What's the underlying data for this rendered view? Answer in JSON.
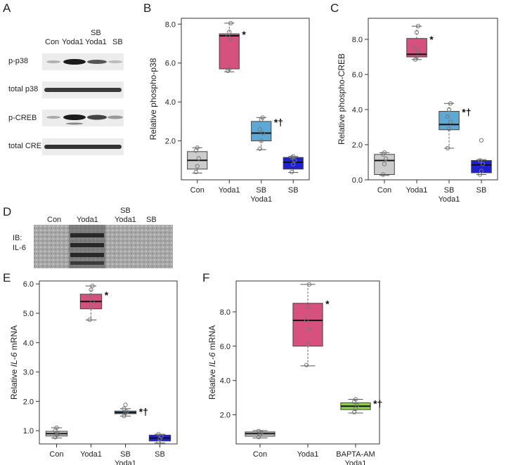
{
  "panel_letters": {
    "a": "A",
    "b": "B",
    "c": "C",
    "d": "D",
    "e": "E",
    "f": "F"
  },
  "blot_a": {
    "lanes": [
      "Con",
      "Yoda1",
      "SB\nYoda1",
      "SB"
    ],
    "rows": [
      "p-p38",
      "total p38",
      "p-CREB",
      "total CREB"
    ]
  },
  "blot_d": {
    "lanes": [
      "Con",
      "Yoda1",
      "SB\nYoda1",
      "SB"
    ],
    "side_label": [
      "IB:",
      "IL-6"
    ]
  },
  "chart_data": [
    {
      "panel": "B",
      "type": "box",
      "ylabel": "Relative phospho-p38",
      "ylim": [
        0.0,
        8.3
      ],
      "yticks": [
        2.0,
        4.0,
        6.0,
        8.0
      ],
      "categories": [
        "Con",
        "Yoda1",
        "SB\nYoda1",
        "SB"
      ],
      "colors": [
        "#cccccc",
        "#d6517e",
        "#5da9d6",
        "#1f1fd6"
      ],
      "boxes": [
        {
          "whisker_low": 0.35,
          "q1": 0.55,
          "median": 1.0,
          "q3": 1.45,
          "whisker_high": 1.65
        },
        {
          "whisker_low": 5.55,
          "q1": 5.7,
          "median": 7.4,
          "q3": 7.5,
          "whisker_high": 8.05
        },
        {
          "whisker_low": 1.55,
          "q1": 2.0,
          "median": 2.4,
          "q3": 3.0,
          "whisker_high": 3.2
        },
        {
          "whisker_low": 0.38,
          "q1": 0.55,
          "median": 0.9,
          "q3": 1.15,
          "whisker_high": 1.2
        }
      ],
      "points": [
        [
          0.4,
          0.7,
          1.1,
          1.5,
          1.65
        ],
        [
          5.6,
          5.7,
          7.2,
          7.4,
          7.6,
          8.05
        ],
        [
          1.6,
          2.0,
          2.4,
          2.6,
          3.1,
          3.2
        ],
        [
          0.4,
          0.8,
          1.0,
          1.15,
          1.2
        ]
      ],
      "annotations": [
        {
          "category": 1,
          "text": "*"
        },
        {
          "category": 2,
          "text": "*†"
        }
      ]
    },
    {
      "panel": "C",
      "type": "box",
      "ylabel": "Relative phospho-CREB",
      "ylim": [
        0.0,
        9.2
      ],
      "yticks": [
        0.0,
        2.0,
        4.0,
        6.0,
        8.0
      ],
      "categories": [
        "Con",
        "Yoda1",
        "SB\nYoda1",
        "SB"
      ],
      "colors": [
        "#cccccc",
        "#d6517e",
        "#5da9d6",
        "#1f1fd6"
      ],
      "boxes": [
        {
          "whisker_low": 0.25,
          "q1": 0.3,
          "median": 1.1,
          "q3": 1.45,
          "whisker_high": 1.55
        },
        {
          "whisker_low": 6.85,
          "q1": 7.0,
          "median": 7.15,
          "q3": 8.05,
          "whisker_high": 8.75
        },
        {
          "whisker_low": 1.8,
          "q1": 2.85,
          "median": 3.15,
          "q3": 3.9,
          "whisker_high": 4.35
        },
        {
          "whisker_low": 0.3,
          "q1": 0.4,
          "median": 0.85,
          "q3": 1.1,
          "whisker_high": 1.15
        }
      ],
      "points": [
        [
          0.3,
          0.9,
          1.2,
          1.45,
          1.55
        ],
        [
          6.85,
          7.0,
          7.3,
          7.5,
          8.4,
          8.75
        ],
        [
          1.8,
          2.9,
          3.3,
          3.6,
          4.0,
          4.35
        ],
        [
          0.3,
          0.5,
          0.9,
          1.1,
          2.25
        ]
      ],
      "annotations": [
        {
          "category": 1,
          "text": "*"
        },
        {
          "category": 2,
          "text": "*†"
        }
      ]
    },
    {
      "panel": "E",
      "type": "box",
      "ylabel": "Relative IL-6 mRNA",
      "ylabel_italic": "IL-6",
      "ylim": [
        0.55,
        6.1
      ],
      "yticks": [
        1.0,
        2.0,
        3.0,
        4.0,
        5.0,
        6.0
      ],
      "categories": [
        "Con",
        "Yoda1",
        "SB\nYoda1",
        "SB"
      ],
      "colors": [
        "#cccccc",
        "#d6517e",
        "#5da9d6",
        "#1f1fd6"
      ],
      "boxes": [
        {
          "whisker_low": 0.75,
          "q1": 0.82,
          "median": 0.9,
          "q3": 0.98,
          "whisker_high": 1.1
        },
        {
          "whisker_low": 4.77,
          "q1": 5.15,
          "median": 5.4,
          "q3": 5.65,
          "whisker_high": 5.93
        },
        {
          "whisker_low": 1.5,
          "q1": 1.58,
          "median": 1.62,
          "q3": 1.67,
          "whisker_high": 1.75
        },
        {
          "whisker_low": 0.58,
          "q1": 0.65,
          "median": 0.75,
          "q3": 0.85,
          "whisker_high": 0.88
        }
      ],
      "points": [
        [
          0.78,
          0.85,
          0.9,
          1.0,
          1.1
        ],
        [
          4.78,
          5.2,
          5.4,
          5.6,
          5.8,
          5.93
        ],
        [
          1.5,
          1.6,
          1.65,
          1.75,
          1.88
        ],
        [
          0.6,
          0.72,
          0.8,
          0.88
        ]
      ],
      "annotations": [
        {
          "category": 1,
          "text": "*"
        },
        {
          "category": 2,
          "text": "*†"
        }
      ]
    },
    {
      "panel": "F",
      "type": "box",
      "ylabel": "Relative IL-6 mRNA",
      "ylabel_italic": "IL-6",
      "ylim": [
        0.3,
        9.8
      ],
      "yticks": [
        2.0,
        4.0,
        6.0,
        8.0
      ],
      "categories": [
        "Con",
        "Yoda1",
        "BAPTA-AM\nYoda1"
      ],
      "colors": [
        "#cccccc",
        "#d6517e",
        "#8fcf4f"
      ],
      "boxes": [
        {
          "whisker_low": 0.65,
          "q1": 0.75,
          "median": 0.9,
          "q3": 1.0,
          "whisker_high": 1.08
        },
        {
          "whisker_low": 4.85,
          "q1": 6.0,
          "median": 7.5,
          "q3": 8.5,
          "whisker_high": 9.6
        },
        {
          "whisker_low": 2.1,
          "q1": 2.3,
          "median": 2.5,
          "q3": 2.7,
          "whisker_high": 2.9
        }
      ],
      "points": [
        [
          0.7,
          0.85,
          0.95,
          1.05
        ],
        [
          4.9,
          6.1,
          7.0,
          7.5,
          8.3,
          9.6
        ],
        [
          2.15,
          2.35,
          2.55,
          2.75,
          2.9
        ]
      ],
      "annotations": [
        {
          "category": 1,
          "text": "*"
        },
        {
          "category": 2,
          "text": "*†"
        }
      ]
    }
  ]
}
